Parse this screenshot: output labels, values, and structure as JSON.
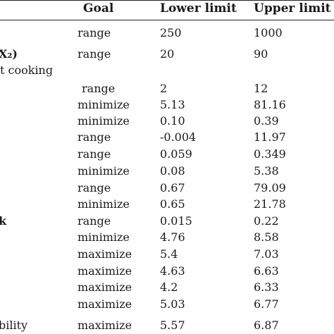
{
  "table": {
    "headers": {
      "goal": "Goal",
      "lower": "Lower limit",
      "upper": "Upper limit"
    },
    "row_labels": {
      "x2": "X₂)",
      "cooking": "t cooking",
      "k": "k",
      "ability": "bility"
    },
    "rows": [
      {
        "goal": "range",
        "lower": "250",
        "upper": "1000"
      },
      {
        "goal": "range",
        "lower": "20",
        "upper": "90"
      },
      {
        "goal": "range",
        "lower": "2",
        "upper": "12"
      },
      {
        "goal": "minimize",
        "lower": "5.13",
        "upper": "81.16"
      },
      {
        "goal": "minimize",
        "lower": "0.10",
        "upper": "0.39"
      },
      {
        "goal": "range",
        "lower": "-0.004",
        "upper": "11.97"
      },
      {
        "goal": "range",
        "lower": "0.059",
        "upper": "0.349"
      },
      {
        "goal": "minimize",
        "lower": "0.08",
        "upper": "5.38"
      },
      {
        "goal": "range",
        "lower": "0.67",
        "upper": "79.09"
      },
      {
        "goal": "minimize",
        "lower": "0.65",
        "upper": "21.78"
      },
      {
        "goal": "range",
        "lower": "0.015",
        "upper": "0.22"
      },
      {
        "goal": "minimize",
        "lower": "4.76",
        "upper": "8.58"
      },
      {
        "goal": "maximize",
        "lower": "5.4",
        "upper": "7.03"
      },
      {
        "goal": "maximize",
        "lower": "4.63",
        "upper": "6.63"
      },
      {
        "goal": "maximize",
        "lower": "4.2",
        "upper": "6.33"
      },
      {
        "goal": "maximize",
        "lower": "5.03",
        "upper": "6.77"
      },
      {
        "goal": "maximize",
        "lower": "5.57",
        "upper": "6.87"
      }
    ]
  }
}
